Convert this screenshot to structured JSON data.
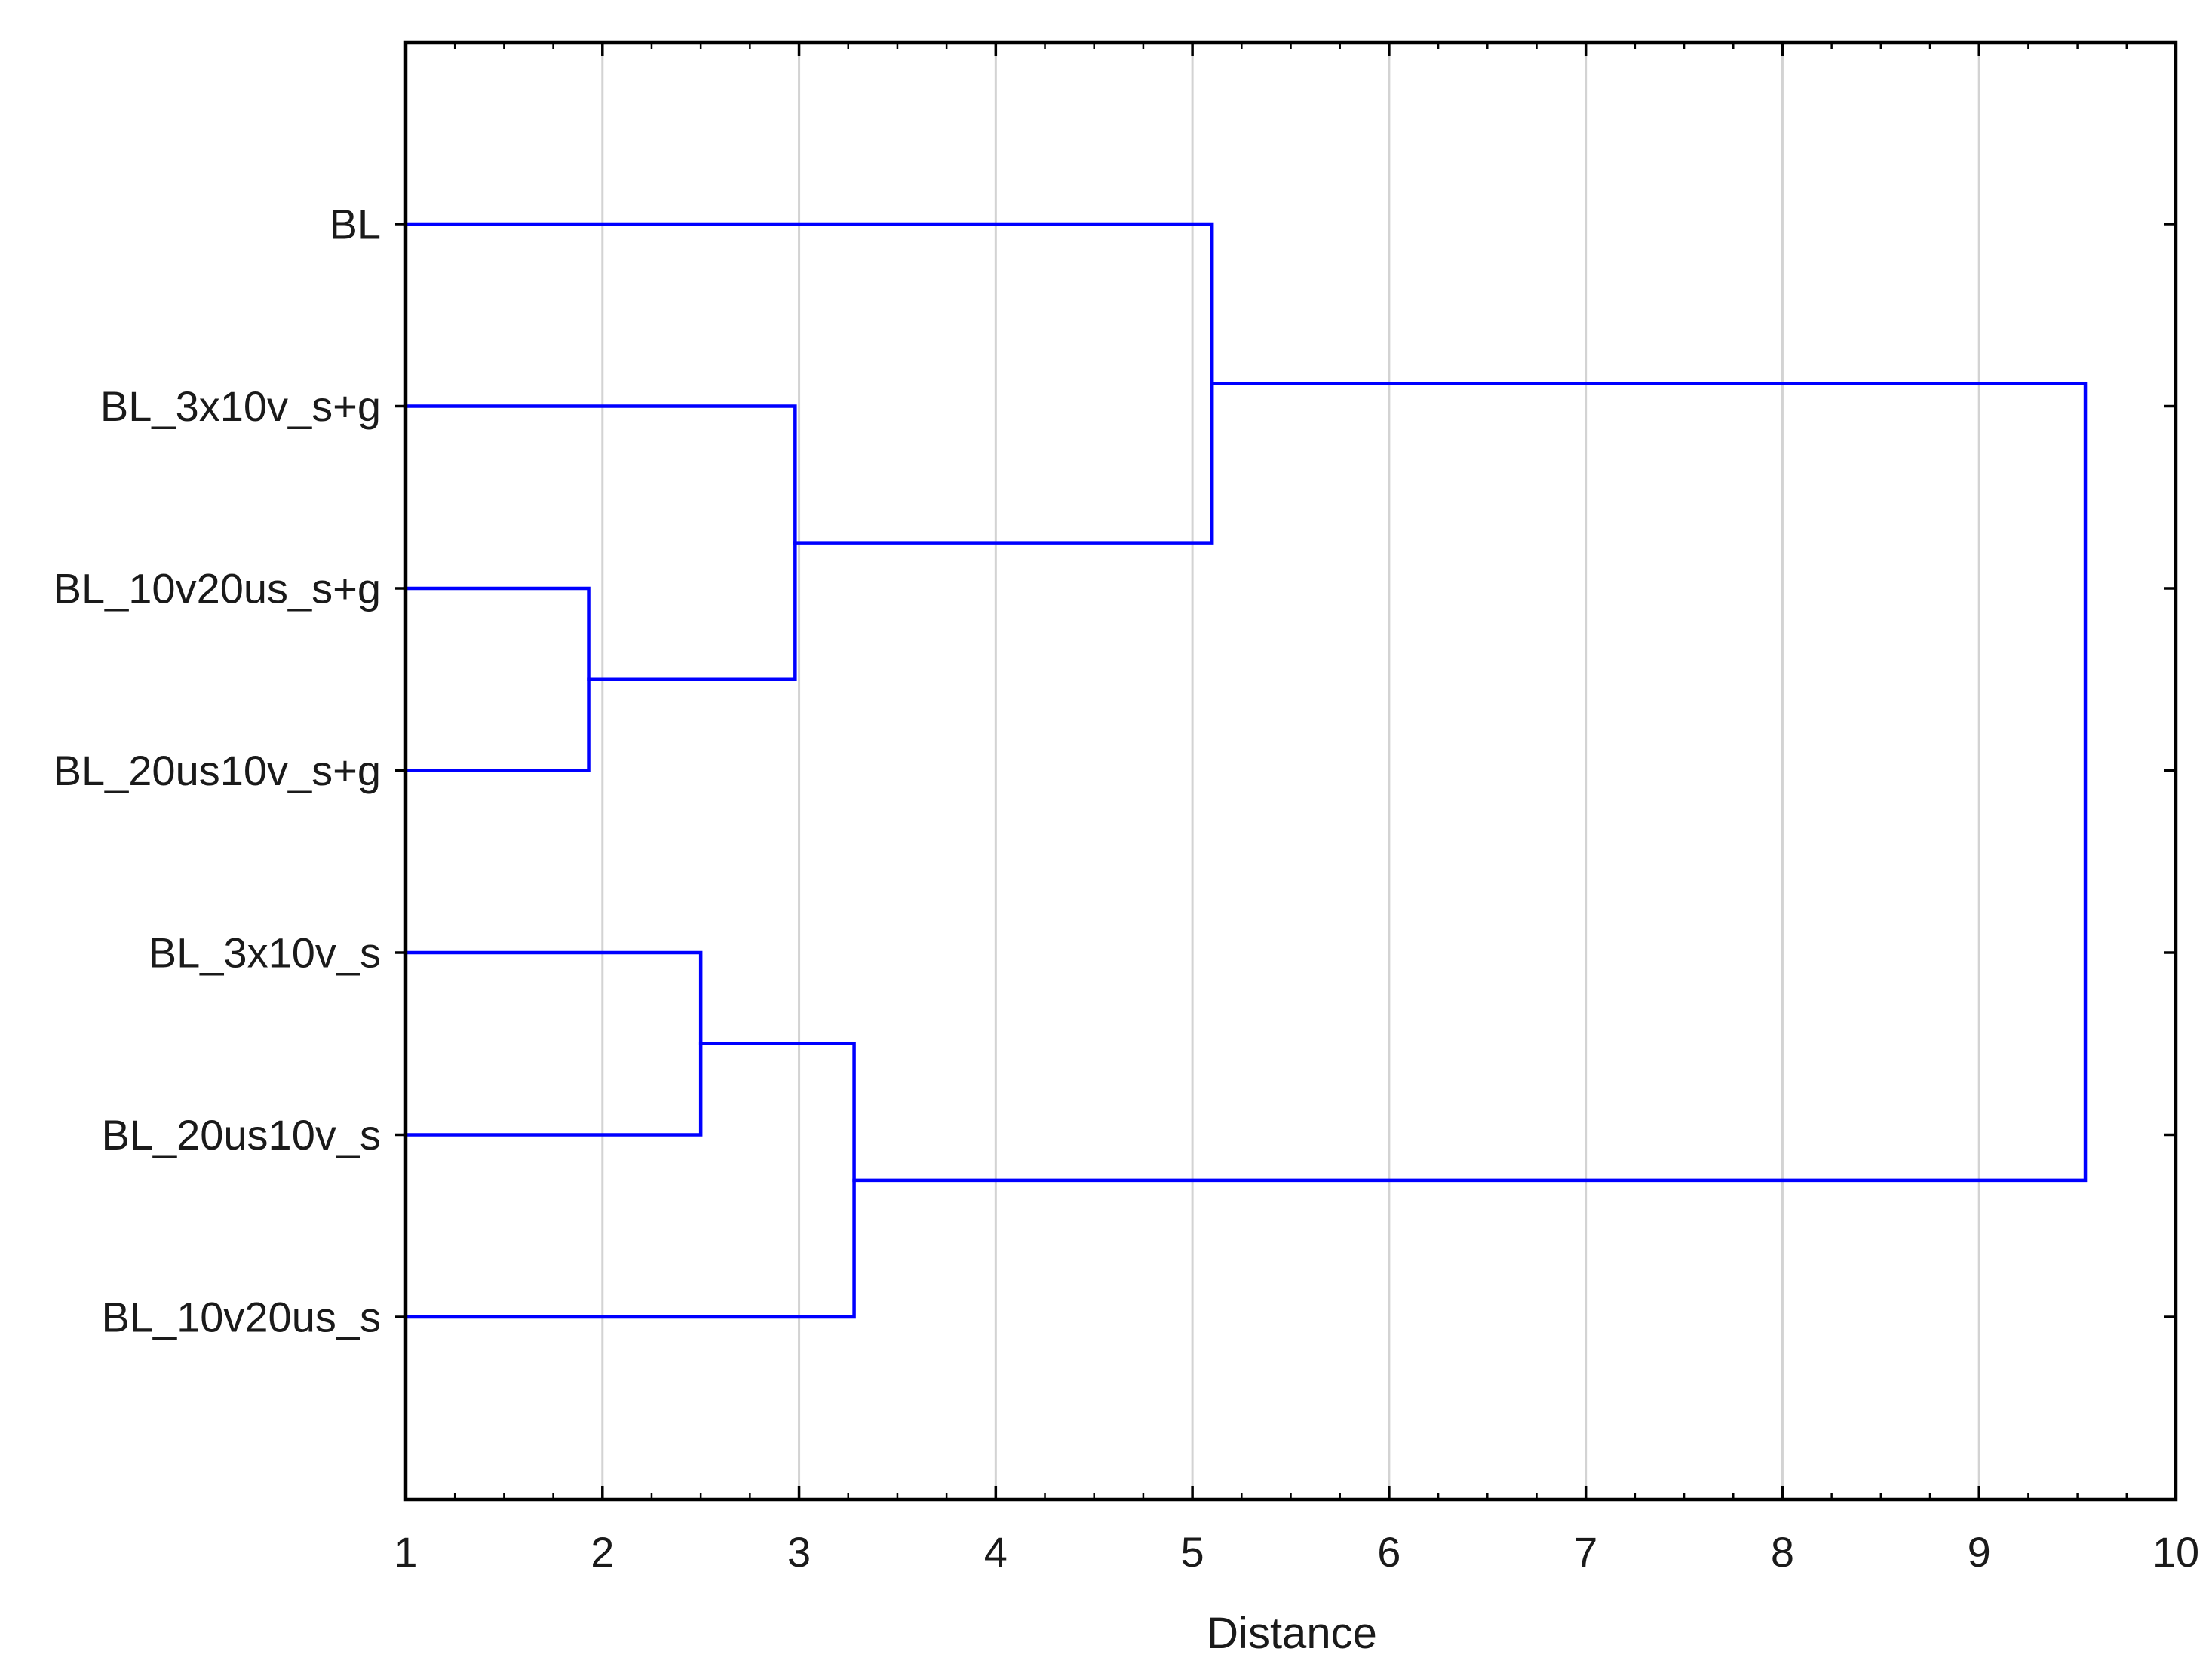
{
  "chart_data": {
    "type": "dendrogram",
    "orientation": "horizontal",
    "xlabel": "Distance",
    "xlim": [
      1,
      10
    ],
    "x_ticks": [
      1,
      2,
      3,
      4,
      5,
      6,
      7,
      8,
      9,
      10
    ],
    "grid": true,
    "line_color": "#0000ff",
    "leaves": [
      "BL",
      "BL_3x10v_s+g",
      "BL_10v20us_s+g",
      "BL_20us10v_s+g",
      "BL_3x10v_s",
      "BL_20us10v_s",
      "BL_10v20us_s"
    ],
    "merges": [
      {
        "id": "c1",
        "children": [
          "BL_10v20us_s+g",
          "BL_20us10v_s+g"
        ],
        "distance": 1.93
      },
      {
        "id": "c2",
        "children": [
          "BL_3x10v_s",
          "BL_20us10v_s"
        ],
        "distance": 2.5
      },
      {
        "id": "c3",
        "children": [
          "BL_3x10v_s+g",
          "c1"
        ],
        "distance": 2.98
      },
      {
        "id": "c4",
        "children": [
          "c2",
          "BL_10v20us_s"
        ],
        "distance": 3.28
      },
      {
        "id": "c5",
        "children": [
          "BL",
          "c3"
        ],
        "distance": 5.1
      },
      {
        "id": "c6",
        "children": [
          "c5",
          "c4"
        ],
        "distance": 9.54
      }
    ]
  }
}
